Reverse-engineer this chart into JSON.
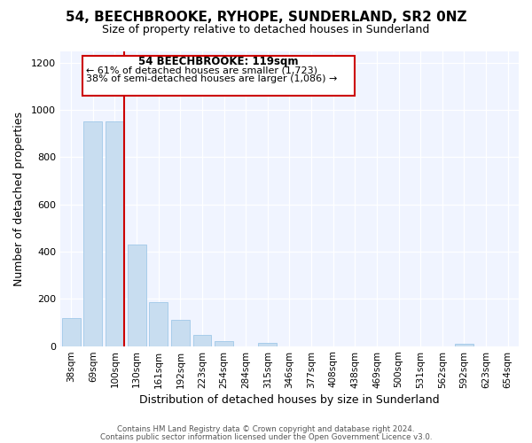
{
  "title": "54, BEECHBROOKE, RYHOPE, SUNDERLAND, SR2 0NZ",
  "subtitle": "Size of property relative to detached houses in Sunderland",
  "xlabel": "Distribution of detached houses by size in Sunderland",
  "ylabel": "Number of detached properties",
  "bar_color": "#c8ddf0",
  "bar_edge_color": "#a0c8e8",
  "highlight_color": "#cc0000",
  "highlight_bin_index": 2,
  "annotation_title": "54 BEECHBROOKE: 119sqm",
  "annotation_line1": "← 61% of detached houses are smaller (1,723)",
  "annotation_line2": "38% of semi-detached houses are larger (1,086) →",
  "bins": [
    "38sqm",
    "69sqm",
    "100sqm",
    "130sqm",
    "161sqm",
    "192sqm",
    "223sqm",
    "254sqm",
    "284sqm",
    "315sqm",
    "346sqm",
    "377sqm",
    "408sqm",
    "438sqm",
    "469sqm",
    "500sqm",
    "531sqm",
    "562sqm",
    "592sqm",
    "623sqm",
    "654sqm"
  ],
  "values": [
    120,
    950,
    950,
    430,
    185,
    110,
    47,
    20,
    0,
    15,
    0,
    0,
    0,
    0,
    0,
    0,
    0,
    0,
    10,
    0,
    0
  ],
  "ylim": [
    0,
    1250
  ],
  "yticks": [
    0,
    200,
    400,
    600,
    800,
    1000,
    1200
  ],
  "footer_line1": "Contains HM Land Registry data © Crown copyright and database right 2024.",
  "footer_line2": "Contains public sector information licensed under the Open Government Licence v3.0.",
  "bg_color": "#f0f4ff"
}
